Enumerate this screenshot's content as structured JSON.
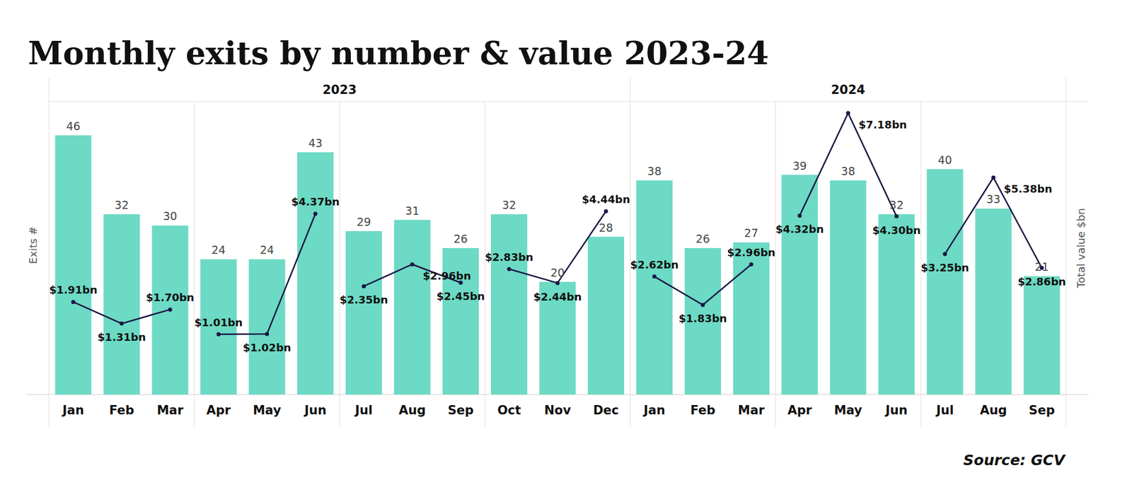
{
  "chart_data": {
    "type": "bar",
    "title": "Monthly exits by number & value 2023-24",
    "source": "Source: GCV",
    "y_label": "Exits #",
    "y2_label": "Total value $bn",
    "categories": [
      "Jan",
      "Feb",
      "Mar",
      "Apr",
      "May",
      "Jun",
      "Jul",
      "Aug",
      "Sep",
      "Oct",
      "Nov",
      "Dec",
      "Jan",
      "Feb",
      "Mar",
      "Apr",
      "May",
      "Jun",
      "Jul",
      "Aug",
      "Sep"
    ],
    "groups": [
      {
        "label": "2023",
        "size": 12
      },
      {
        "label": "2024",
        "size": 9
      }
    ],
    "ylim": [
      0,
      52
    ],
    "yticks": [],
    "y2lim": [
      -0.67,
      7.5
    ],
    "y2ticks": [],
    "tick_labels": false,
    "grid": false,
    "data_labels": true,
    "series": [
      {
        "type": "bar",
        "color": "#6cdac4",
        "values": [
          46,
          32,
          30,
          24,
          24,
          43,
          29,
          31,
          26,
          32,
          20,
          28,
          38,
          26,
          27,
          39,
          38,
          32,
          40,
          33,
          21
        ]
      },
      {
        "type": "line",
        "axis": "y2",
        "color": "#1b1747",
        "marker": "circle",
        "values": [
          1.91,
          1.31,
          1.7,
          1.01,
          1.02,
          4.37,
          2.35,
          2.96,
          2.45,
          2.83,
          2.44,
          4.44,
          2.62,
          1.83,
          2.96,
          4.32,
          7.18,
          4.3,
          3.25,
          5.38,
          2.86
        ],
        "value_labels": [
          "$1.91bn",
          "$1.31bn",
          "$1.70bn",
          "$1.01bn",
          "$1.02bn",
          "$4.37bn",
          "$2.35bn",
          "$2.96bn",
          "$2.45bn",
          "$2.83bn",
          "$2.44bn",
          "$4.44bn",
          "$2.62bn",
          "$1.83bn",
          "$2.96bn",
          "$4.32bn",
          "$7.18bn",
          "$4.30bn",
          "$3.25bn",
          "$5.38bn",
          "$2.86bn"
        ]
      }
    ]
  }
}
